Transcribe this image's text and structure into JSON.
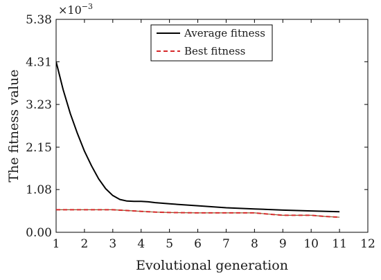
{
  "chart_data": {
    "type": "line",
    "xlabel": "Evolutional generation",
    "ylabel": "The fitness value",
    "y_multiplier": {
      "base": "×10",
      "exponent": "−3"
    },
    "xlim": [
      1,
      12
    ],
    "ylim": [
      0,
      5.38
    ],
    "x_ticks": [
      1,
      2,
      3,
      4,
      5,
      6,
      7,
      8,
      9,
      10,
      11,
      12
    ],
    "x_tick_labels": [
      "1",
      "2",
      "3",
      "4",
      "5",
      "6",
      "7",
      "8",
      "9",
      "10",
      "11",
      "12"
    ],
    "y_ticks": [
      0,
      1.08,
      2.15,
      3.23,
      4.31,
      5.38
    ],
    "y_tick_labels": [
      "0.00",
      "1.08",
      "2.15",
      "3.23",
      "4.31",
      "5.38"
    ],
    "grid": false,
    "legend_position": "top-center",
    "series": [
      {
        "name": "Average fitness",
        "color": "#000000",
        "style": "solid",
        "x": [
          1,
          1.25,
          1.5,
          1.75,
          2,
          2.25,
          2.5,
          2.75,
          3,
          3.25,
          3.5,
          3.75,
          4,
          4.25,
          4.5,
          5,
          6,
          7,
          8,
          9,
          10,
          11
        ],
        "y": [
          4.31,
          3.6,
          3.0,
          2.5,
          2.05,
          1.68,
          1.35,
          1.1,
          0.93,
          0.83,
          0.79,
          0.78,
          0.78,
          0.77,
          0.75,
          0.72,
          0.67,
          0.62,
          0.59,
          0.56,
          0.54,
          0.52
        ]
      },
      {
        "name": "Best fitness",
        "color": "#d62728",
        "style": "dashed",
        "x": [
          1,
          2,
          3,
          3.5,
          4,
          4.5,
          5,
          6,
          7,
          8,
          8.5,
          9,
          10,
          10.5,
          11
        ],
        "y": [
          0.57,
          0.57,
          0.57,
          0.55,
          0.53,
          0.51,
          0.5,
          0.49,
          0.49,
          0.49,
          0.46,
          0.43,
          0.43,
          0.4,
          0.38
        ]
      }
    ]
  }
}
